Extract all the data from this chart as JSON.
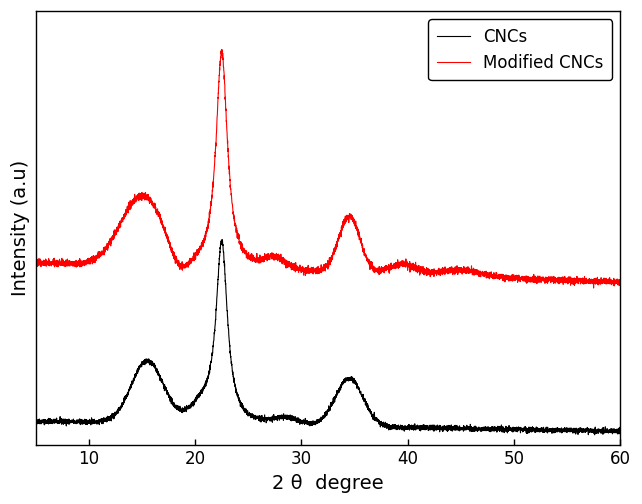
{
  "title": "",
  "xlabel": "2 θ  degree",
  "ylabel": "Intensity (a.u)",
  "xlim": [
    5,
    60
  ],
  "ylim": [
    0,
    1.0
  ],
  "legend_labels": [
    "CNCs",
    "Modified CNCs"
  ],
  "legend_colors": [
    "black",
    "red"
  ],
  "background_color": "white",
  "tick_fontsize": 12,
  "label_fontsize": 14,
  "legend_fontsize": 12
}
